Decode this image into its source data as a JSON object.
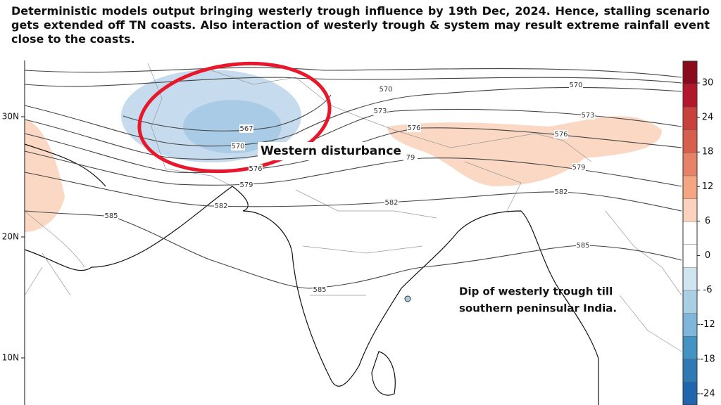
{
  "title": "Deterministic models output bringing westerly trough influence by 19th Dec, 2024. Hence, stalling scenario gets extended off TN coasts. Also interaction of westerly trough & system may result extreme rainfall event close to the coasts.",
  "map": {
    "latitude_labels": [
      "30N",
      "20N",
      "10N"
    ],
    "contour_labels": [
      "567",
      "570",
      "576",
      "579",
      "582",
      "585",
      "570",
      "573",
      "576",
      "79",
      "582",
      "585",
      "570",
      "573",
      "576",
      "579",
      "582",
      "585"
    ]
  },
  "annotations": {
    "western_disturbance": "Western disturbance",
    "trough_dip": [
      "Dip of westerly trough till",
      "southern peninsular India."
    ]
  },
  "colorbar": {
    "ticks": [
      "30",
      "24",
      "18",
      "12",
      "6",
      "0",
      "-6",
      "-12",
      "-18",
      "-24"
    ],
    "colors": [
      "#8b0a1e",
      "#b2182b",
      "#c8413a",
      "#d6604d",
      "#e58268",
      "#f4a582",
      "#fbd2bc",
      "#ffffff",
      "#ffffff",
      "#d1e5f0",
      "#a9cfe5",
      "#7fb6d9",
      "#4393c3",
      "#2f79b5",
      "#2166ac"
    ]
  }
}
